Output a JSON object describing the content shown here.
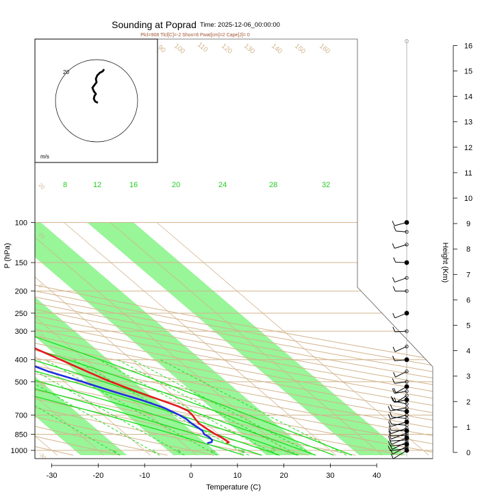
{
  "chart_data": {
    "type": "line",
    "title": "Sounding at Poprad",
    "time_label": "Time: 2025-12-06_00:00:00",
    "indices": "Plcl=908 Tlcl[C]=-2 Shox=6 Pwat[cm]=2 Cape[J]= 0",
    "xlabel": "Temperature (C)",
    "ylabel": "P (hPa)",
    "y2label": "Height (Km)",
    "xlim": [
      -33,
      46
    ],
    "ylim": [
      1050,
      100
    ],
    "x_ticks": [
      -30,
      -20,
      -10,
      0,
      10,
      20,
      30,
      40
    ],
    "y_ticks": [
      100,
      150,
      200,
      250,
      300,
      400,
      500,
      700,
      850,
      1000
    ],
    "height_ticks": [
      0,
      1,
      2,
      3,
      4,
      5,
      6,
      7,
      8,
      9,
      10,
      11,
      12,
      13,
      14,
      15,
      16
    ],
    "isotherm_labels": [
      "-30",
      "-20",
      "-10",
      "0",
      "10",
      "20",
      "30"
    ],
    "mixing_ratio_labels": [
      "1",
      "2",
      "3",
      "5",
      "8",
      "12"
    ],
    "moist_adiabat_labels": [
      "8",
      "12",
      "16",
      "20",
      "24",
      "28",
      "32"
    ],
    "dry_adiabat_labels": [
      "90",
      "100",
      "110",
      "120",
      "130",
      "140",
      "150",
      "160"
    ],
    "hodograph": {
      "ring_label": "20",
      "unit_label": "m/s"
    },
    "series": [
      {
        "name": "Temperature",
        "color": "#e41a1c",
        "pressure": [
          930,
          920,
          900,
          870,
          850,
          820,
          790,
          760,
          730,
          700,
          670,
          640,
          600,
          550,
          500,
          450,
          400,
          350,
          300,
          250,
          225,
          200,
          180,
          160,
          140,
          120,
          105
        ],
        "values": [
          9.5,
          10.2,
          10,
          9.8,
          9.3,
          9,
          8.7,
          8.5,
          8.8,
          9.2,
          9.3,
          8.3,
          6,
          3,
          0,
          -2.6,
          -5.3,
          -8.4,
          -11.4,
          -14,
          -15,
          -14.9,
          -12.9,
          -9.8,
          -5.1,
          0.4,
          3.9
        ]
      },
      {
        "name": "Dewpoint",
        "color": "#1f2de0",
        "pressure": [
          930,
          920,
          900,
          870,
          850,
          820,
          790,
          760,
          730,
          700,
          650,
          600,
          550,
          500,
          450,
          400,
          350,
          300,
          250,
          225,
          200,
          180,
          160,
          140,
          120,
          105
        ],
        "values": [
          5.3,
          6.5,
          7.2,
          7.2,
          6.9,
          7.4,
          7.2,
          6.9,
          6.9,
          6.4,
          4.9,
          1.9,
          -2.1,
          -6.1,
          -10.9,
          -14.6,
          -17.9,
          -20.8,
          -22.1,
          -22.1,
          -21.7,
          -20.8,
          -20.2,
          -18.4,
          -14.6,
          -9.6
        ]
      }
    ],
    "wind_levels_hpa": [
      1000,
      980,
      960,
      940,
      920,
      900,
      880,
      860,
      840,
      820,
      800,
      775,
      750,
      725,
      700,
      675,
      650,
      625,
      600,
      575,
      550,
      525,
      500,
      450,
      400,
      350,
      300,
      250,
      200,
      175,
      150,
      125,
      110,
      100
    ]
  }
}
